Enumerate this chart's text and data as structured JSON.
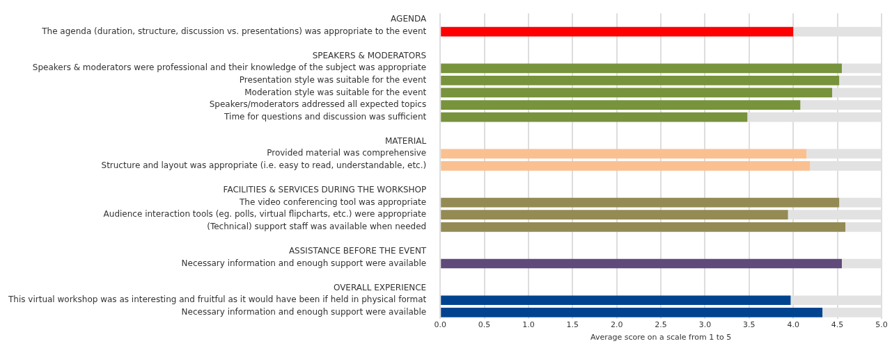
{
  "chart_data": {
    "type": "bar",
    "orientation": "horizontal",
    "stacked": true,
    "categories": [
      "AGENDA",
      "The agenda (duration, structure, discussion vs. presentations) was appropriate to the event",
      null,
      "SPEAKERS & MODERATORS",
      "Speakers & moderators were professional and their knowledge of the subject was appropriate",
      "Presentation style was suitable for the event",
      "Moderation style was suitable for the event",
      "Speakers/moderators addressed all expected topics",
      "Time for questions and discussion was sufficient",
      null,
      "MATERIAL",
      "Provided material was comprehensive",
      "Structure and layout was appropriate (i.e. easy to read, understandable, etc.)",
      null,
      "FACILITIES & SERVICES DURING THE WORKSHOP",
      "The video conferencing tool was appropriate",
      "Audience interaction tools (eg. polls, virtual flipcharts, etc.) were appropriate",
      "(Technical) support staff was available when needed",
      null,
      "ASSISTANCE BEFORE THE EVENT",
      "Necessary information and enough support were available",
      null,
      "OVERALL EXPERIENCE",
      "This virtual workshop was as interesting and fruitful as it would have been if held in physical format",
      "Necessary information and enough support were available"
    ],
    "series": [
      {
        "values": [
          null,
          4.0,
          null,
          null,
          4.55,
          4.52,
          4.44,
          4.08,
          3.48,
          null,
          null,
          4.15,
          4.19,
          null,
          null,
          4.52,
          3.94,
          4.59,
          null,
          null,
          4.55,
          null,
          null,
          3.97,
          4.33
        ],
        "colors": [
          null,
          "#ff0000",
          null,
          null,
          "#77933c",
          "#77933c",
          "#77933c",
          "#77933c",
          "#77933c",
          null,
          null,
          "#fac090",
          "#fac090",
          null,
          null,
          "#948a54",
          "#948a54",
          "#948a54",
          null,
          null,
          "#604a7b",
          null,
          null,
          "#00448f",
          "#00448f"
        ]
      },
      {
        "color": "#e2e2e2",
        "values": [
          null,
          1.0,
          null,
          null,
          0.45,
          0.48,
          0.56,
          0.92,
          1.52,
          null,
          null,
          0.85,
          0.81,
          null,
          null,
          0.48,
          1.06,
          0.41,
          null,
          null,
          0.45,
          null,
          null,
          1.03,
          0.67
        ]
      }
    ],
    "xlim": [
      0,
      5
    ],
    "xticks": [
      {
        "value": 0,
        "label": "0.0"
      },
      0.5,
      {
        "value": 1,
        "label": "1.0"
      },
      1.5,
      {
        "value": 2,
        "label": "2.0"
      },
      2.5,
      {
        "value": 3,
        "label": "3.0"
      },
      3.5,
      {
        "value": 4,
        "label": "4.0"
      },
      4.5,
      {
        "value": 5,
        "label": "5.0"
      }
    ],
    "xlabel": "Average score on a scale from 1 to 5",
    "grid": "x",
    "legend": false
  }
}
